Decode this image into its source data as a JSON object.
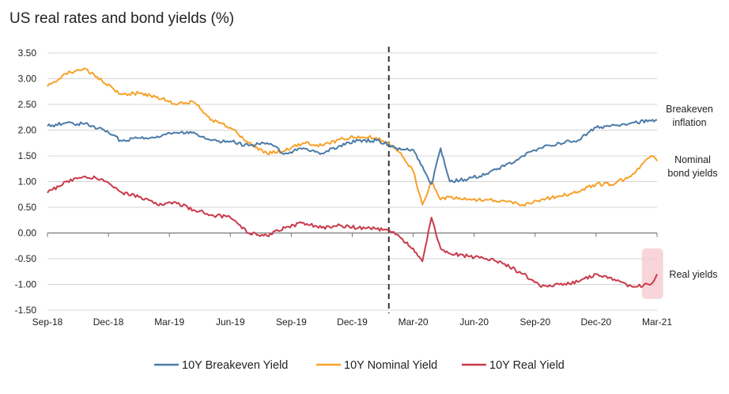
{
  "chart_data": {
    "type": "line",
    "title": "US real rates and bond yields (%)",
    "xlabel": "",
    "ylabel": "",
    "ylim": [
      -1.5,
      3.5
    ],
    "yticks": [
      3.5,
      3.0,
      2.5,
      2.0,
      1.5,
      1.0,
      0.5,
      0.0,
      -0.5,
      -1.0,
      -1.5
    ],
    "ytick_labels": [
      "3.50",
      "3.00",
      "2.50",
      "2.00",
      "1.50",
      "1.00",
      "0.50",
      "0.00",
      "-0.50",
      "-1.00",
      "-1.50"
    ],
    "x_ticks": [
      "Sep-18",
      "Dec-18",
      "Mar-19",
      "Jun-19",
      "Sep-19",
      "Dec-19",
      "Mar-20",
      "Jun-20",
      "Sep-20",
      "Dec-20",
      "Mar-21"
    ],
    "grid": true,
    "event_line_x": 5.6,
    "x": [
      0,
      0.3,
      0.6,
      0.9,
      1.2,
      1.5,
      1.8,
      2.1,
      2.4,
      2.7,
      3.0,
      3.3,
      3.6,
      3.9,
      4.2,
      4.5,
      4.8,
      5.1,
      5.4,
      5.6,
      5.8,
      6.0,
      6.15,
      6.3,
      6.45,
      6.6,
      6.9,
      7.2,
      7.5,
      7.8,
      8.1,
      8.4,
      8.7,
      9.0,
      9.3,
      9.6,
      9.9,
      10.0
    ],
    "series": [
      {
        "name": "10Y Breakeven Yield",
        "color": "#4c7ba8",
        "values": [
          2.08,
          2.14,
          2.12,
          2.02,
          1.8,
          1.85,
          1.88,
          1.95,
          1.96,
          1.8,
          1.78,
          1.7,
          1.75,
          1.55,
          1.65,
          1.55,
          1.7,
          1.8,
          1.8,
          1.72,
          1.62,
          1.62,
          1.3,
          0.95,
          1.65,
          1.0,
          1.05,
          1.15,
          1.3,
          1.5,
          1.65,
          1.75,
          1.8,
          2.05,
          2.1,
          2.15,
          2.18,
          2.2
        ]
      },
      {
        "name": "10Y Nominal Yield",
        "color": "#f7a12a",
        "values": [
          2.85,
          3.1,
          3.2,
          2.95,
          2.7,
          2.72,
          2.65,
          2.5,
          2.55,
          2.2,
          2.05,
          1.75,
          1.55,
          1.6,
          1.75,
          1.7,
          1.82,
          1.88,
          1.85,
          1.75,
          1.55,
          1.2,
          0.55,
          1.0,
          0.65,
          0.7,
          0.65,
          0.65,
          0.62,
          0.55,
          0.65,
          0.72,
          0.8,
          0.95,
          0.95,
          1.15,
          1.5,
          1.4
        ]
      },
      {
        "name": "10Y Real Yield",
        "color": "#c93a4a",
        "values": [
          0.78,
          1.0,
          1.1,
          1.05,
          0.8,
          0.7,
          0.55,
          0.6,
          0.45,
          0.35,
          0.3,
          0.0,
          -0.05,
          0.1,
          0.2,
          0.1,
          0.15,
          0.1,
          0.08,
          0.05,
          -0.1,
          -0.3,
          -0.55,
          0.3,
          -0.3,
          -0.4,
          -0.45,
          -0.5,
          -0.6,
          -0.8,
          -1.05,
          -1.0,
          -0.95,
          -0.8,
          -0.9,
          -1.05,
          -1.0,
          -0.8
        ]
      }
    ],
    "annotations": [
      {
        "id": "breakeven",
        "lines": [
          "Breakeven",
          "inflation"
        ]
      },
      {
        "id": "nominal",
        "lines": [
          "Nominal",
          "bond yields"
        ]
      },
      {
        "id": "real",
        "lines": [
          "Real yields"
        ]
      }
    ],
    "highlight_color": "#f5c7cc",
    "legend": {
      "placement": "bottom",
      "entries": [
        "10Y Breakeven Yield",
        "10Y Nominal Yield",
        "10Y Real Yield"
      ]
    }
  }
}
